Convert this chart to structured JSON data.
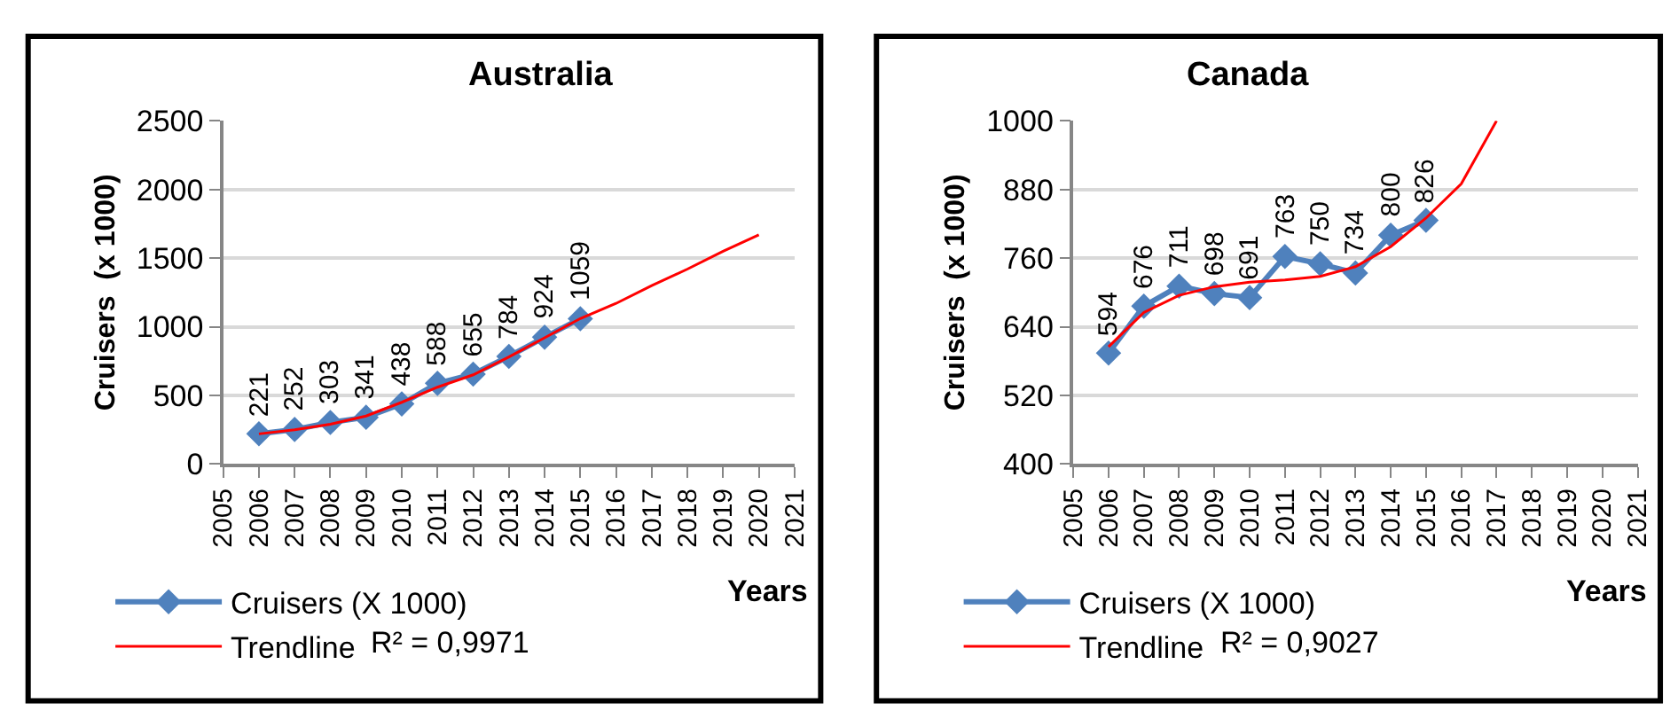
{
  "chart_data": [
    {
      "type": "line",
      "title": "Australia",
      "xlabel": "Years",
      "ylabel": "Cruisers  (x 1000)",
      "x": [
        2006,
        2007,
        2008,
        2009,
        2010,
        2011,
        2012,
        2013,
        2014,
        2015
      ],
      "series": [
        {
          "name": "Cruisers (X 1000)",
          "color": "#4f81bd",
          "marker": "diamond",
          "values": [
            221,
            252,
            303,
            341,
            438,
            588,
            655,
            784,
            924,
            1059
          ],
          "value_labels": [
            "221",
            "252",
            "303",
            "341",
            "438",
            "588",
            "655",
            "784",
            "924",
            "1059"
          ]
        },
        {
          "name": "Trendline",
          "color": "#ff0000",
          "marker": "none",
          "x": [
            2006,
            2007,
            2008,
            2009,
            2010,
            2011,
            2012,
            2013,
            2014,
            2015,
            2016,
            2017,
            2018,
            2019,
            2020
          ],
          "values": [
            220,
            250,
            290,
            350,
            450,
            560,
            650,
            780,
            920,
            1060,
            1170,
            1300,
            1420,
            1550,
            1670
          ]
        }
      ],
      "xlim": [
        2005,
        2021
      ],
      "xticks": [
        2005,
        2006,
        2007,
        2008,
        2009,
        2010,
        2011,
        2012,
        2013,
        2014,
        2015,
        2016,
        2017,
        2018,
        2019,
        2020,
        2021
      ],
      "ylim": [
        0,
        2500
      ],
      "yticks": [
        0,
        500,
        1000,
        1500,
        2000,
        2500
      ],
      "grid": "y",
      "legend": "bottom",
      "annotations": [
        "R² = 0,9971"
      ]
    },
    {
      "type": "line",
      "title": "Canada",
      "xlabel": "Years",
      "ylabel": "Cruisers  (x 1000)",
      "x": [
        2006,
        2007,
        2008,
        2009,
        2010,
        2011,
        2012,
        2013,
        2014,
        2015
      ],
      "series": [
        {
          "name": "Cruisers (X 1000)",
          "color": "#4f81bd",
          "marker": "diamond",
          "values": [
            594,
            676,
            711,
            698,
            691,
            763,
            750,
            734,
            800,
            826
          ],
          "value_labels": [
            "594",
            "676",
            "711",
            "698",
            "691",
            "763",
            "750",
            "734",
            "800",
            "826"
          ]
        },
        {
          "name": "Trendline",
          "color": "#ff0000",
          "marker": "none",
          "x": [
            2006,
            2007,
            2008,
            2009,
            2010,
            2011,
            2012,
            2013,
            2014,
            2015,
            2016,
            2017
          ],
          "values": [
            605,
            665,
            695,
            710,
            718,
            722,
            728,
            745,
            780,
            830,
            890,
            1000
          ]
        }
      ],
      "xlim": [
        2005,
        2021
      ],
      "xticks": [
        2005,
        2006,
        2007,
        2008,
        2009,
        2010,
        2011,
        2012,
        2013,
        2014,
        2015,
        2016,
        2017,
        2018,
        2019,
        2020,
        2021
      ],
      "ylim": [
        400,
        1000
      ],
      "yticks": [
        400,
        520,
        640,
        760,
        880,
        1000
      ],
      "grid": "y",
      "legend": "bottom",
      "annotations": [
        "R² = 0,9027"
      ]
    }
  ]
}
